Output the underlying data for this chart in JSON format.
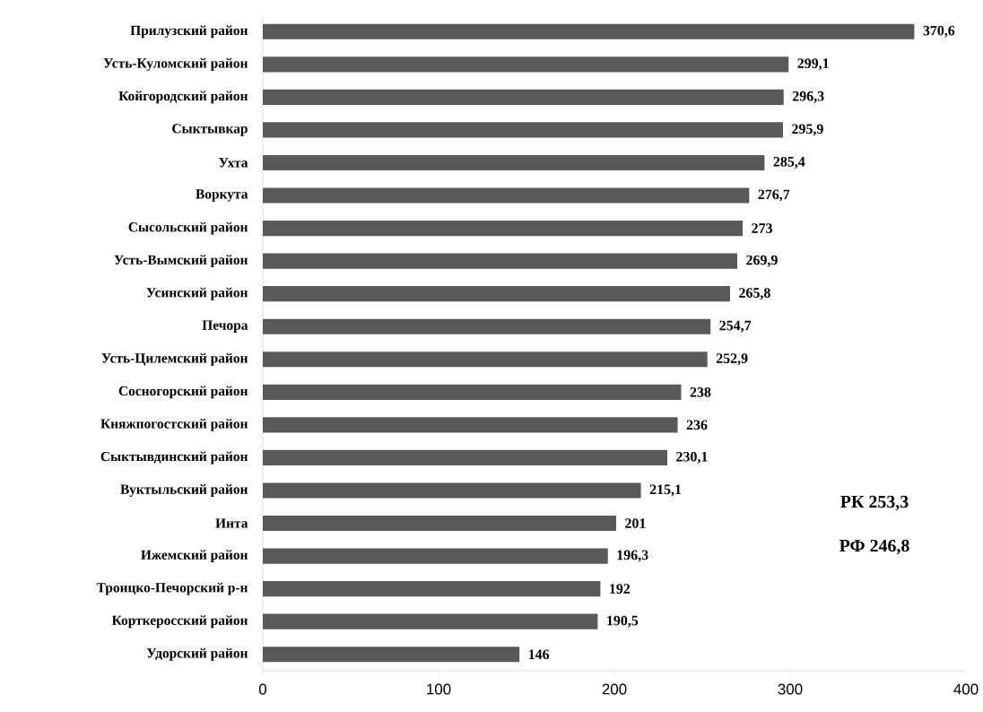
{
  "chart_data": {
    "type": "bar",
    "orientation": "horizontal",
    "categories": [
      "Прилузский район",
      "Усть-Куломский район",
      "Койгородский район",
      "Сыктывкар",
      "Ухта",
      "Воркута",
      "Сысольский район",
      "Усть-Вымский район",
      "Усинский район",
      "Печора",
      "Усть-Цилемский район",
      "Сосногорский район",
      "Княжпогостский район",
      "Сыктывдинский район",
      "Вуктыльский район",
      "Инта",
      "Ижемский район",
      "Троицко-Печорский р-н",
      "Корткеросский район",
      "Удорский район"
    ],
    "values": [
      370.6,
      299.1,
      296.3,
      295.9,
      285.4,
      276.7,
      273,
      269.9,
      265.8,
      254.7,
      252.9,
      238,
      236,
      230.1,
      215.1,
      201,
      196.3,
      192,
      190.5,
      146
    ],
    "value_labels": [
      "370,6",
      "299,1",
      "296,3",
      "295,9",
      "285,4",
      "276,7",
      "273",
      "269,9",
      "265,8",
      "254,7",
      "252,9",
      "238",
      "236",
      "230,1",
      "215,1",
      "201",
      "196,3",
      "192",
      "190,5",
      "146"
    ],
    "color": "#595959",
    "xlim": [
      0,
      400
    ],
    "xticks": [
      0,
      100,
      200,
      300,
      400
    ],
    "annotations": [
      "РК 253,3",
      "РФ 246,8"
    ]
  }
}
